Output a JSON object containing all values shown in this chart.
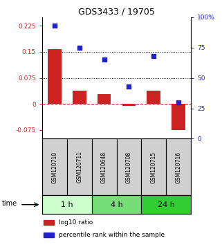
{
  "title": "GDS3433 / 19705",
  "samples": [
    "GSM120710",
    "GSM120711",
    "GSM120648",
    "GSM120708",
    "GSM120715",
    "GSM120716"
  ],
  "log10_ratio": [
    0.158,
    0.038,
    0.028,
    -0.005,
    0.038,
    -0.075
  ],
  "percentile_rank": [
    93,
    75,
    65,
    43,
    68,
    30
  ],
  "time_groups": [
    {
      "label": "1 h",
      "start": 0,
      "end": 2,
      "color": "#ccffcc"
    },
    {
      "label": "4 h",
      "start": 2,
      "end": 4,
      "color": "#77dd77"
    },
    {
      "label": "24 h",
      "start": 4,
      "end": 6,
      "color": "#33cc33"
    }
  ],
  "bar_color": "#cc2222",
  "scatter_color": "#2222cc",
  "left_ylim": [
    -0.1,
    0.25
  ],
  "right_ylim": [
    0,
    100
  ],
  "left_yticks": [
    -0.075,
    0,
    0.075,
    0.15,
    0.225
  ],
  "right_yticks": [
    0,
    25,
    50,
    75,
    100
  ],
  "hline_vals": [
    0.075,
    0.15
  ],
  "title_fontsize": 9,
  "tick_fontsize": 6.5,
  "sample_fontsize": 5.5,
  "group_label_fontsize": 8,
  "legend_fontsize": 6.5
}
